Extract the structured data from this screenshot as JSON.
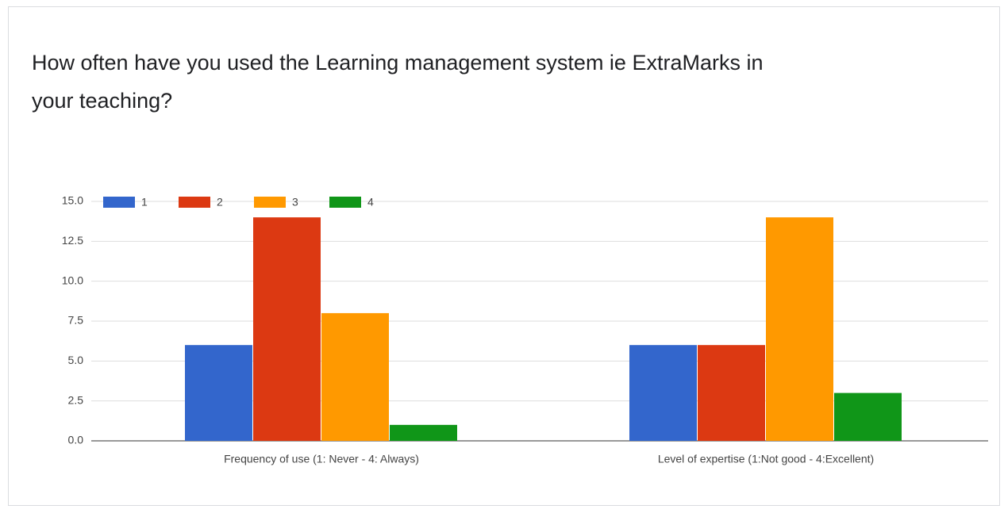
{
  "chart_data": {
    "type": "bar",
    "title": "How often have you used the Learning management system ie ExtraMarks in your teaching?",
    "categories": [
      "Frequency of use (1: Never - 4: Always)",
      "Level of expertise (1:Not good - 4:Excellent)"
    ],
    "series": [
      {
        "name": "1",
        "color": "#3366cc",
        "values": [
          6,
          6
        ]
      },
      {
        "name": "2",
        "color": "#dc3912",
        "values": [
          14,
          6
        ]
      },
      {
        "name": "3",
        "color": "#ff9900",
        "values": [
          8,
          14
        ]
      },
      {
        "name": "4",
        "color": "#109618",
        "values": [
          1,
          3
        ]
      }
    ],
    "ylim": [
      0,
      15
    ],
    "yticks": [
      {
        "value": 0,
        "label": "0.0"
      },
      2.5,
      {
        "value": 5,
        "label": "5.0"
      },
      7.5,
      {
        "value": 10,
        "label": "10.0"
      },
      12.5,
      {
        "value": 15,
        "label": "15.0"
      }
    ],
    "grid": true,
    "legend": "top"
  }
}
